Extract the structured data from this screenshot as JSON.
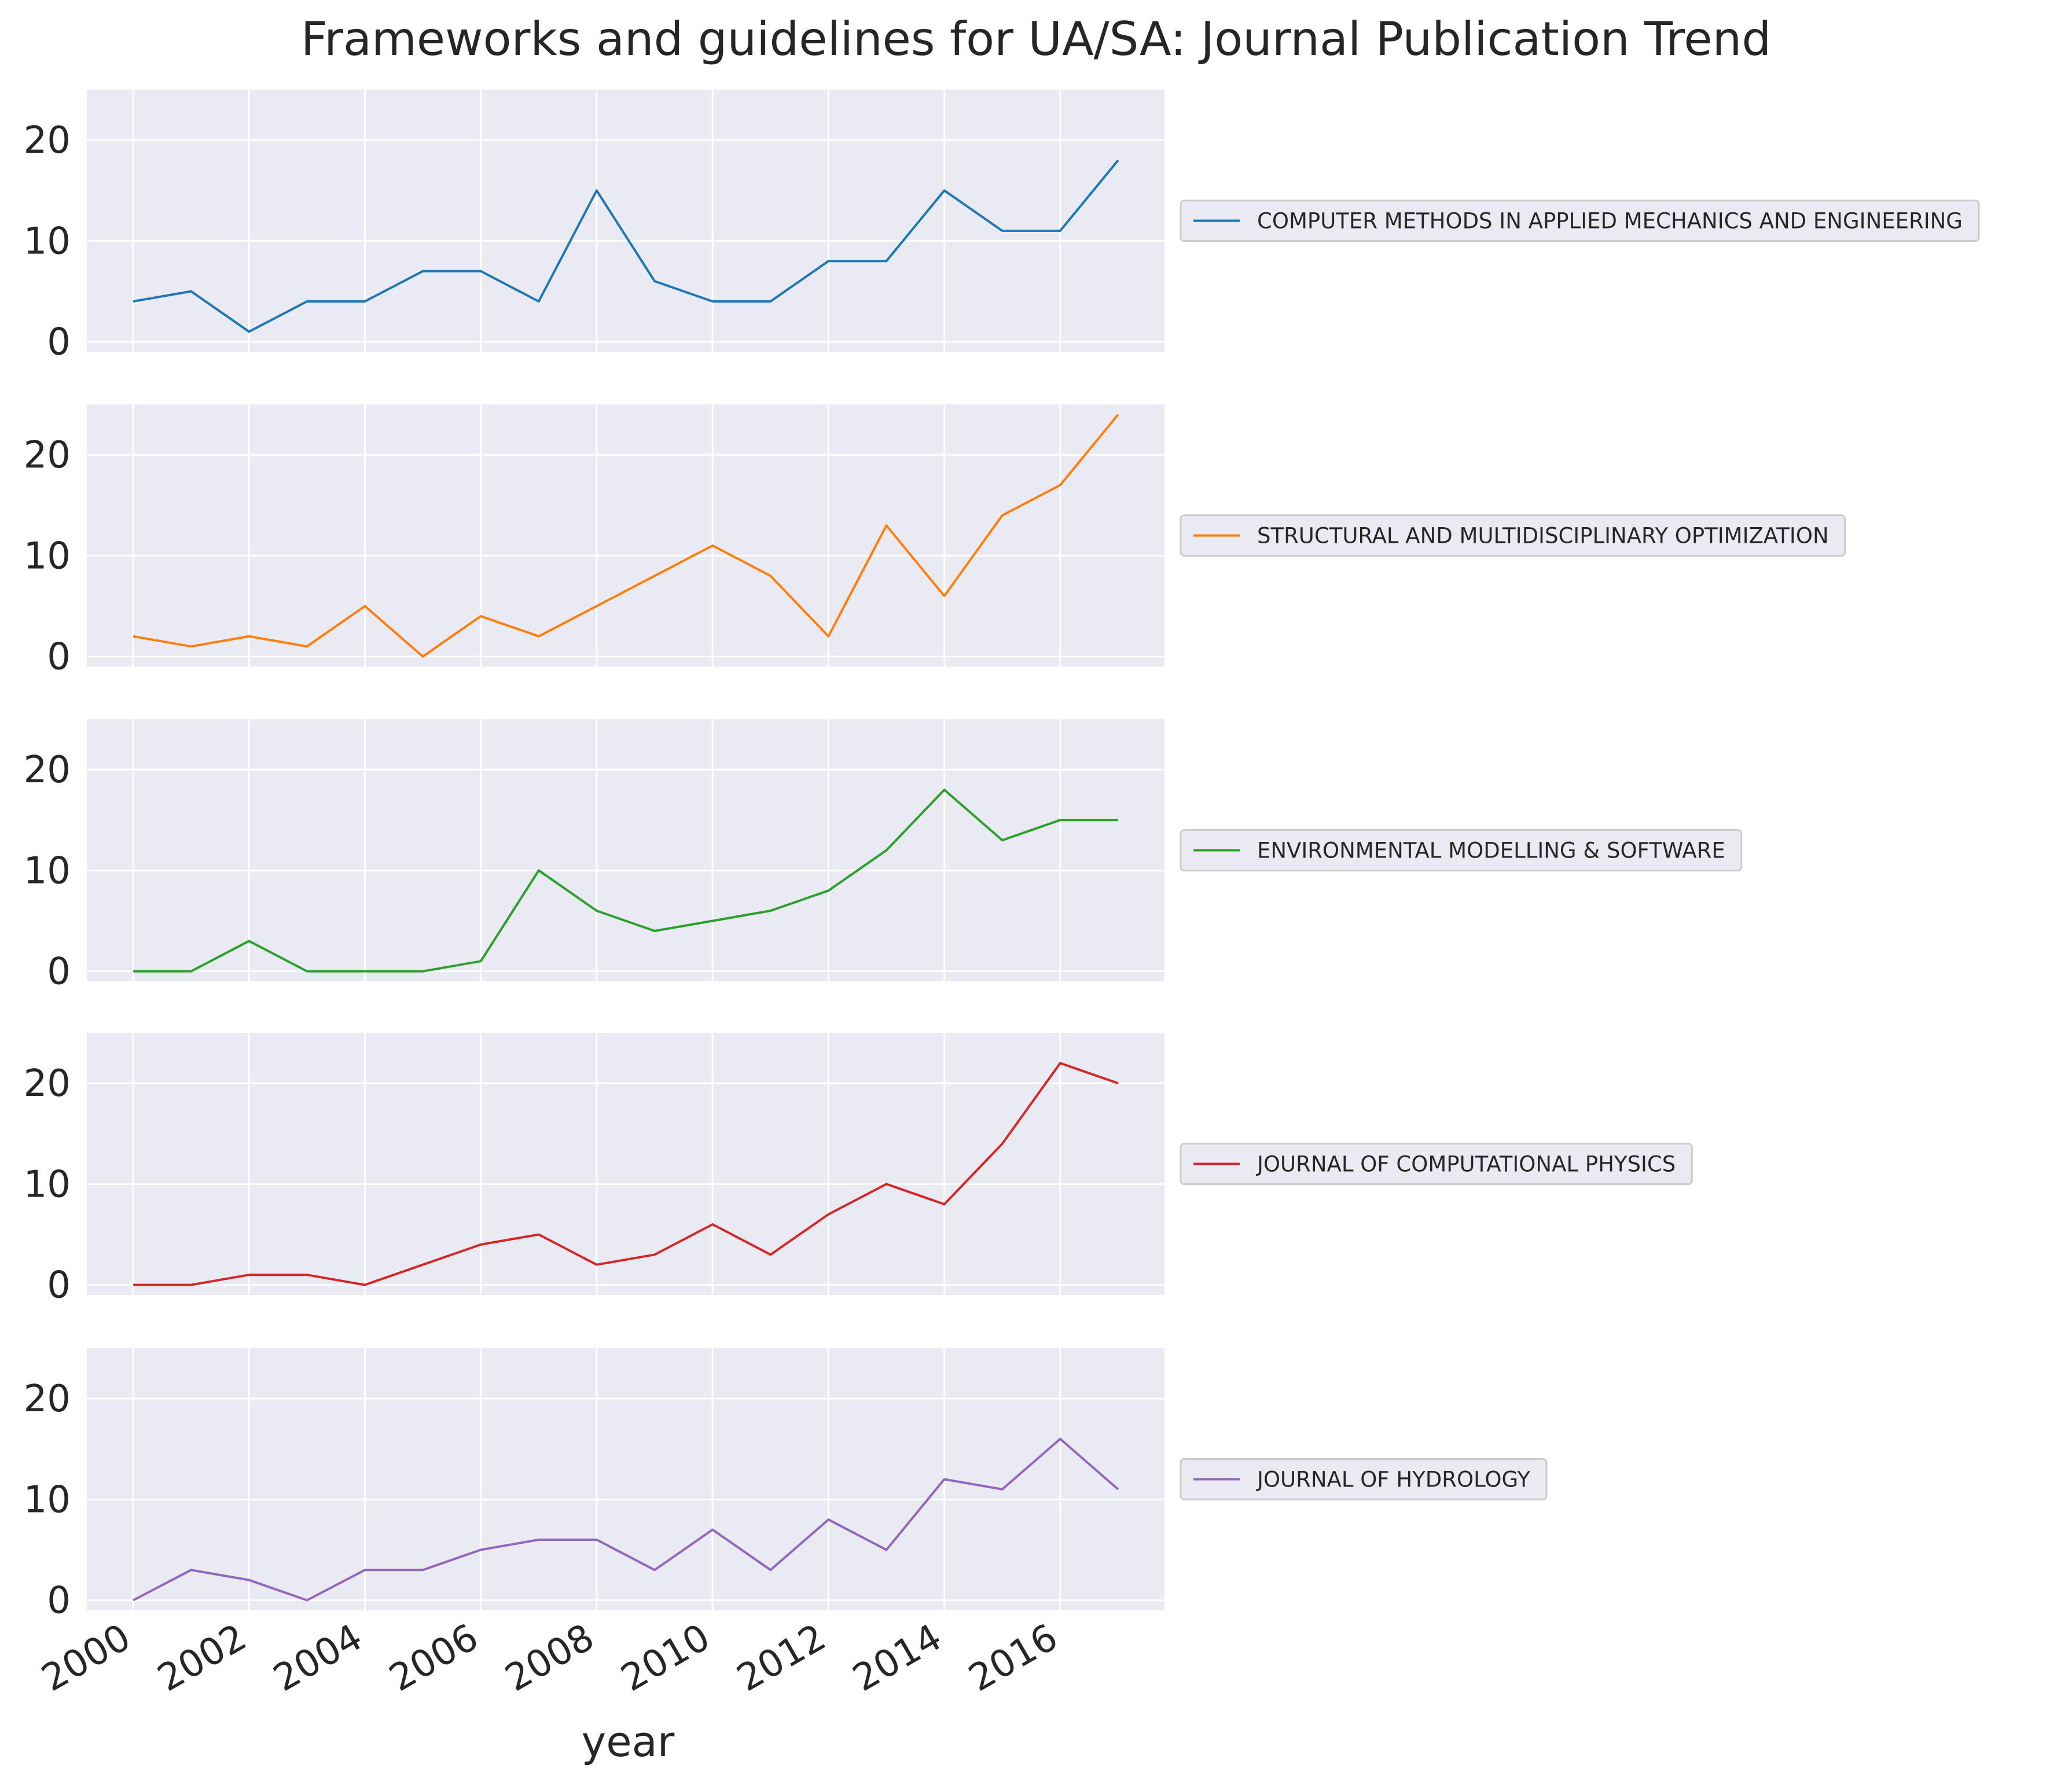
{
  "chart_data": {
    "type": "line",
    "title": "Frameworks and guidelines for UA/SA: Journal Publication Trend",
    "xlabel": "year",
    "ylabel": "",
    "x": [
      2000,
      2001,
      2002,
      2003,
      2004,
      2005,
      2006,
      2007,
      2008,
      2009,
      2010,
      2011,
      2012,
      2013,
      2014,
      2015,
      2016,
      2017
    ],
    "xticks": [
      "2000",
      "2002",
      "2004",
      "2006",
      "2008",
      "2010",
      "2012",
      "2014",
      "2016"
    ],
    "xlim": [
      1999.2,
      2017.8
    ],
    "ylim": [
      -1,
      25
    ],
    "yticks": [
      "0",
      "10",
      "20"
    ],
    "grid": true,
    "legend_placement": "right",
    "series": [
      {
        "name": "COMPUTER METHODS IN APPLIED MECHANICS AND ENGINEERING",
        "color": "#1f77b4",
        "values": [
          4,
          5,
          1,
          4,
          4,
          7,
          7,
          4,
          15,
          6,
          4,
          4,
          8,
          8,
          15,
          11,
          11,
          18
        ]
      },
      {
        "name": "STRUCTURAL AND MULTIDISCIPLINARY OPTIMIZATION",
        "color": "#ff7f0e",
        "values": [
          2,
          1,
          2,
          1,
          5,
          0,
          4,
          2,
          5,
          8,
          11,
          8,
          2,
          13,
          6,
          14,
          17,
          24
        ]
      },
      {
        "name": "ENVIRONMENTAL MODELLING & SOFTWARE",
        "color": "#2ca02c",
        "values": [
          0,
          0,
          3,
          0,
          0,
          0,
          1,
          10,
          6,
          4,
          5,
          6,
          8,
          12,
          18,
          13,
          15,
          15
        ]
      },
      {
        "name": "JOURNAL OF COMPUTATIONAL PHYSICS",
        "color": "#d62728",
        "values": [
          0,
          0,
          1,
          1,
          0,
          2,
          4,
          5,
          2,
          3,
          6,
          3,
          7,
          10,
          8,
          14,
          22,
          20
        ]
      },
      {
        "name": "JOURNAL OF HYDROLOGY",
        "color": "#9467bd",
        "values": [
          0,
          3,
          2,
          0,
          3,
          3,
          5,
          6,
          6,
          3,
          7,
          3,
          8,
          5,
          12,
          11,
          16,
          11
        ]
      }
    ]
  },
  "colors": {
    "panel_background": "#eaeaf2",
    "grid": "#ffffff",
    "legend_background": "#eaeaf2",
    "legend_border": "#cccccc"
  }
}
